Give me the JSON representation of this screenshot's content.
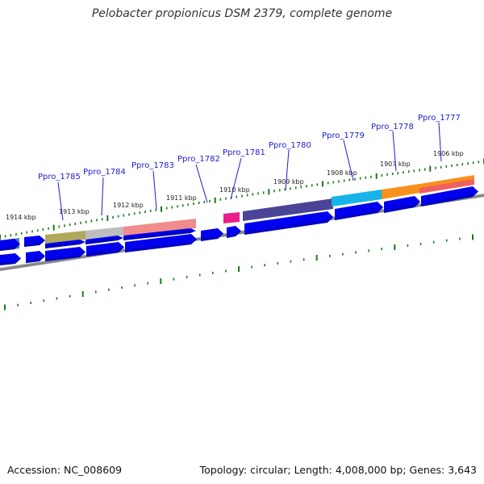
{
  "title": "Pelobacter propionicus DSM 2379, complete genome",
  "accession": "Accession: NC_008609",
  "summary": "Topology: circular; Length: 4,008,000 bp; Genes: 3,643",
  "kbp_labels": [
    "1914 kbp",
    "1913 kbp",
    "1912 kbp",
    "1911 kbp",
    "1910 kbp",
    "1909 kbp",
    "1908 kbp",
    "1907 kbp",
    "1906 kbp"
  ],
  "genes": [
    "Ppro_1785",
    "Ppro_1784",
    "Ppro_1783",
    "Ppro_1782",
    "Ppro_1781",
    "Ppro_1780",
    "Ppro_1779",
    "Ppro_1778",
    "Ppro_1777"
  ],
  "colors": {
    "gene_blue": "#0000ee",
    "tick_green": "#1a7a1a",
    "backbone_gray": "#888888",
    "label_blue": "#1c1cd0"
  }
}
